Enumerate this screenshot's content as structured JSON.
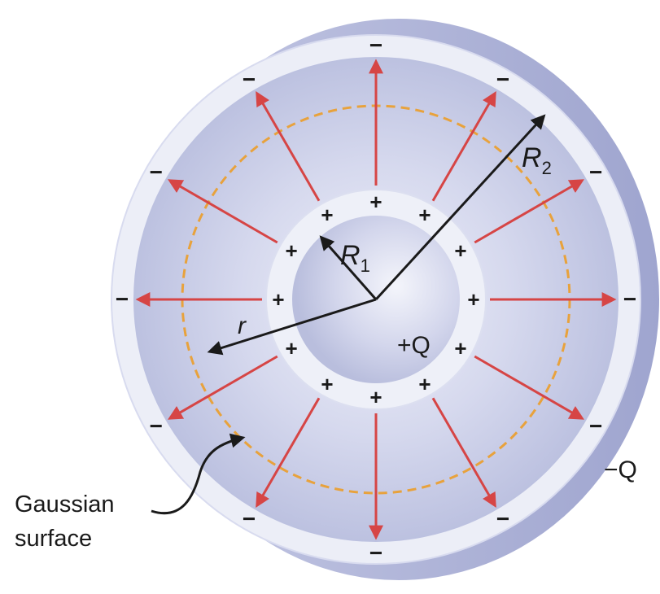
{
  "labels": {
    "R1_main": "R",
    "R1_sub": "1",
    "R2_main": "R",
    "R2_sub": "2",
    "r": "r",
    "plus_q": "+Q",
    "minus_q": "−Q",
    "caption_line1": "Gaussian",
    "caption_line2": "surface"
  },
  "symbols": {
    "plus": "+",
    "minus": "−"
  },
  "colors": {
    "field_arrow": "#d64545",
    "gaussian_surface": "#e8a23c",
    "radius_arrow": "#1a1a1a",
    "shell": "#cfd3ea",
    "shell_rim": "#e9ebf6",
    "inner_sphere": "#c9cde6"
  },
  "icons": {
    "caption_pointer": "curved-arrow-icon"
  }
}
